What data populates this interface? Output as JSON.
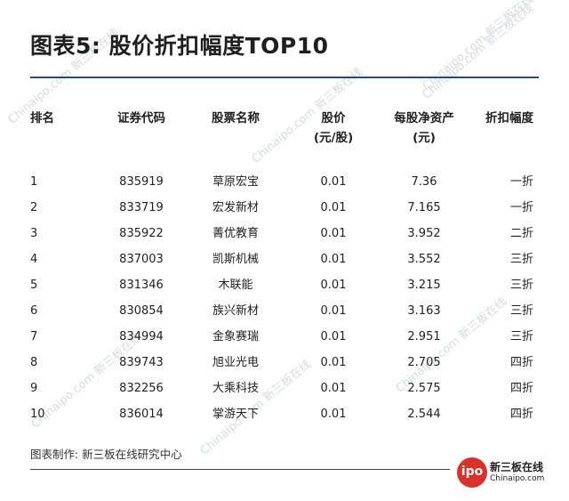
{
  "title": "图表5: 股价折扣幅度TOP10",
  "table": {
    "headers": {
      "rank": "排名",
      "code": "证券代码",
      "name": "股票名称",
      "price_line1": "股价",
      "price_line2": "(元/股)",
      "nav_line1": "每股净资产",
      "nav_line2": "(元)",
      "discount": "折扣幅度"
    },
    "rows": [
      {
        "rank": "1",
        "code": "835919",
        "name": "草原宏宝",
        "price": "0.01",
        "nav": "7.36",
        "discount": "一折"
      },
      {
        "rank": "2",
        "code": "833719",
        "name": "宏发新材",
        "price": "0.01",
        "nav": "7.165",
        "discount": "一折"
      },
      {
        "rank": "3",
        "code": "835922",
        "name": "菁优教育",
        "price": "0.01",
        "nav": "3.952",
        "discount": "二折"
      },
      {
        "rank": "4",
        "code": "837003",
        "name": "凯斯机械",
        "price": "0.01",
        "nav": "3.552",
        "discount": "三折"
      },
      {
        "rank": "5",
        "code": "831346",
        "name": "木联能",
        "price": "0.01",
        "nav": "3.215",
        "discount": "三折"
      },
      {
        "rank": "6",
        "code": "830854",
        "name": "族兴新材",
        "price": "0.01",
        "nav": "3.163",
        "discount": "三折"
      },
      {
        "rank": "7",
        "code": "834994",
        "name": "金象赛瑞",
        "price": "0.01",
        "nav": "2.951",
        "discount": "三折"
      },
      {
        "rank": "8",
        "code": "839743",
        "name": "旭业光电",
        "price": "0.01",
        "nav": "2.705",
        "discount": "四折"
      },
      {
        "rank": "9",
        "code": "832256",
        "name": "大乘科技",
        "price": "0.01",
        "nav": "2.575",
        "discount": "四折"
      },
      {
        "rank": "10",
        "code": "836014",
        "name": "掌游天下",
        "price": "0.01",
        "nav": "2.544",
        "discount": "四折"
      }
    ]
  },
  "footer": {
    "source": "图表制作: 新三板在线研究中心"
  },
  "logo": {
    "badge": "ipo",
    "name": "新三板在线",
    "url": "Chinaipo.com"
  },
  "watermark": {
    "text": "Chinaipo.com 新三板在线"
  },
  "colors": {
    "accent_rule": "#1f4e8c",
    "logo_red": "#d9322b",
    "watermark": "#d6dbe1"
  }
}
